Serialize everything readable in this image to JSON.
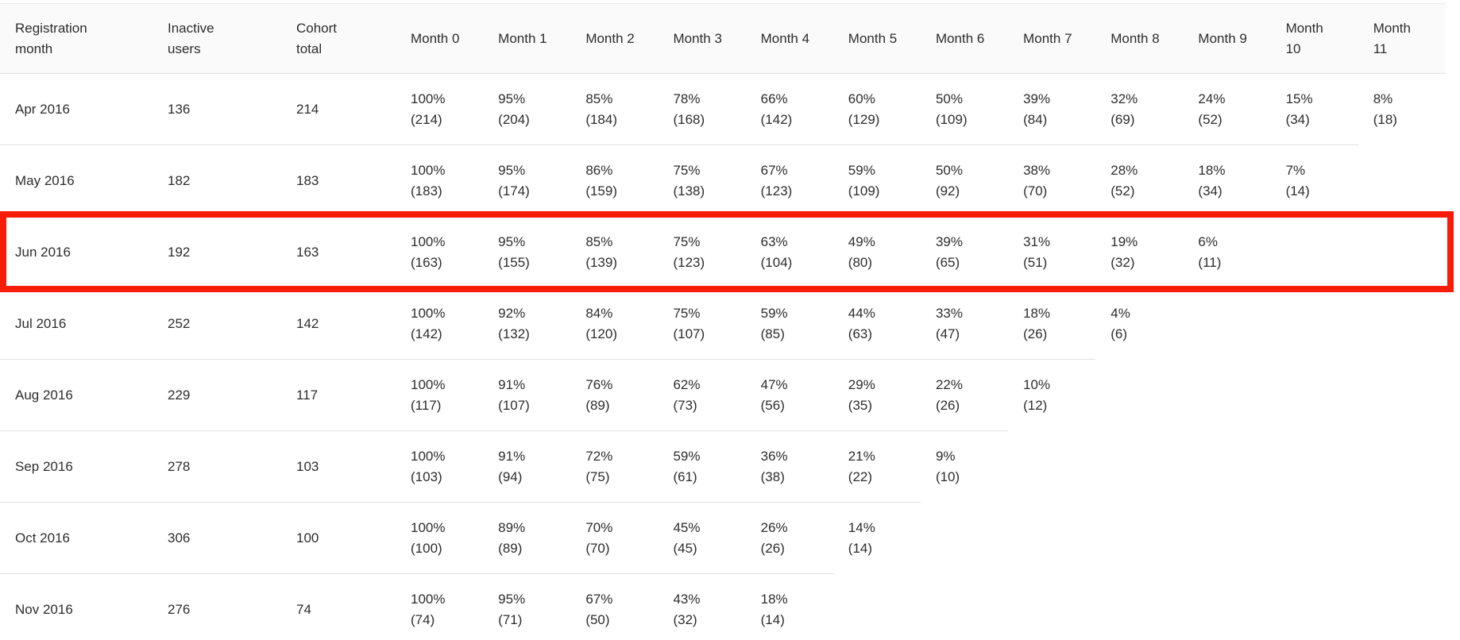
{
  "colors": {
    "highlight_border": "#f71c08",
    "header_bg": "#fafafa",
    "divider": "#e3e3e3",
    "text": "#2d2d2d"
  },
  "highlight": {
    "highlighted_row": "Jun 2016",
    "color": "#f71c08"
  },
  "table": {
    "headers": [
      "Registration month",
      "Inactive users",
      "Cohort total",
      "Month 0",
      "Month 1",
      "Month 2",
      "Month 3",
      "Month 4",
      "Month 5",
      "Month 6",
      "Month 7",
      "Month 8",
      "Month 9",
      "Month 10",
      "Month 11"
    ],
    "rows": [
      {
        "registration_month": "Apr 2016",
        "inactive_users": "136",
        "cohort_total": "214",
        "highlighted": false,
        "months": [
          {
            "pct": "100%",
            "count": "(214)"
          },
          {
            "pct": "95%",
            "count": "(204)"
          },
          {
            "pct": "85%",
            "count": "(184)"
          },
          {
            "pct": "78%",
            "count": "(168)"
          },
          {
            "pct": "66%",
            "count": "(142)"
          },
          {
            "pct": "60%",
            "count": "(129)"
          },
          {
            "pct": "50%",
            "count": "(109)"
          },
          {
            "pct": "39%",
            "count": "(84)"
          },
          {
            "pct": "32%",
            "count": "(69)"
          },
          {
            "pct": "24%",
            "count": "(52)"
          },
          {
            "pct": "15%",
            "count": "(34)"
          },
          {
            "pct": "8%",
            "count": "(18)"
          }
        ]
      },
      {
        "registration_month": "May 2016",
        "inactive_users": "182",
        "cohort_total": "183",
        "highlighted": false,
        "months": [
          {
            "pct": "100%",
            "count": "(183)"
          },
          {
            "pct": "95%",
            "count": "(174)"
          },
          {
            "pct": "86%",
            "count": "(159)"
          },
          {
            "pct": "75%",
            "count": "(138)"
          },
          {
            "pct": "67%",
            "count": "(123)"
          },
          {
            "pct": "59%",
            "count": "(109)"
          },
          {
            "pct": "50%",
            "count": "(92)"
          },
          {
            "pct": "38%",
            "count": "(70)"
          },
          {
            "pct": "28%",
            "count": "(52)"
          },
          {
            "pct": "18%",
            "count": "(34)"
          },
          {
            "pct": "7%",
            "count": "(14)"
          }
        ]
      },
      {
        "registration_month": "Jun 2016",
        "inactive_users": "192",
        "cohort_total": "163",
        "highlighted": true,
        "months": [
          {
            "pct": "100%",
            "count": "(163)"
          },
          {
            "pct": "95%",
            "count": "(155)"
          },
          {
            "pct": "85%",
            "count": "(139)"
          },
          {
            "pct": "75%",
            "count": "(123)"
          },
          {
            "pct": "63%",
            "count": "(104)"
          },
          {
            "pct": "49%",
            "count": "(80)"
          },
          {
            "pct": "39%",
            "count": "(65)"
          },
          {
            "pct": "31%",
            "count": "(51)"
          },
          {
            "pct": "19%",
            "count": "(32)"
          },
          {
            "pct": "6%",
            "count": "(11)"
          }
        ]
      },
      {
        "registration_month": "Jul 2016",
        "inactive_users": "252",
        "cohort_total": "142",
        "highlighted": false,
        "months": [
          {
            "pct": "100%",
            "count": "(142)"
          },
          {
            "pct": "92%",
            "count": "(132)"
          },
          {
            "pct": "84%",
            "count": "(120)"
          },
          {
            "pct": "75%",
            "count": "(107)"
          },
          {
            "pct": "59%",
            "count": "(85)"
          },
          {
            "pct": "44%",
            "count": "(63)"
          },
          {
            "pct": "33%",
            "count": "(47)"
          },
          {
            "pct": "18%",
            "count": "(26)"
          },
          {
            "pct": "4%",
            "count": "(6)"
          }
        ]
      },
      {
        "registration_month": "Aug 2016",
        "inactive_users": "229",
        "cohort_total": "117",
        "highlighted": false,
        "months": [
          {
            "pct": "100%",
            "count": "(117)"
          },
          {
            "pct": "91%",
            "count": "(107)"
          },
          {
            "pct": "76%",
            "count": "(89)"
          },
          {
            "pct": "62%",
            "count": "(73)"
          },
          {
            "pct": "47%",
            "count": "(56)"
          },
          {
            "pct": "29%",
            "count": "(35)"
          },
          {
            "pct": "22%",
            "count": "(26)"
          },
          {
            "pct": "10%",
            "count": "(12)"
          }
        ]
      },
      {
        "registration_month": "Sep 2016",
        "inactive_users": "278",
        "cohort_total": "103",
        "highlighted": false,
        "months": [
          {
            "pct": "100%",
            "count": "(103)"
          },
          {
            "pct": "91%",
            "count": "(94)"
          },
          {
            "pct": "72%",
            "count": "(75)"
          },
          {
            "pct": "59%",
            "count": "(61)"
          },
          {
            "pct": "36%",
            "count": "(38)"
          },
          {
            "pct": "21%",
            "count": "(22)"
          },
          {
            "pct": "9%",
            "count": "(10)"
          }
        ]
      },
      {
        "registration_month": "Oct 2016",
        "inactive_users": "306",
        "cohort_total": "100",
        "highlighted": false,
        "months": [
          {
            "pct": "100%",
            "count": "(100)"
          },
          {
            "pct": "89%",
            "count": "(89)"
          },
          {
            "pct": "70%",
            "count": "(70)"
          },
          {
            "pct": "45%",
            "count": "(45)"
          },
          {
            "pct": "26%",
            "count": "(26)"
          },
          {
            "pct": "14%",
            "count": "(14)"
          }
        ]
      },
      {
        "registration_month": "Nov 2016",
        "inactive_users": "276",
        "cohort_total": "74",
        "highlighted": false,
        "months": [
          {
            "pct": "100%",
            "count": "(74)"
          },
          {
            "pct": "95%",
            "count": "(71)"
          },
          {
            "pct": "67%",
            "count": "(50)"
          },
          {
            "pct": "43%",
            "count": "(32)"
          },
          {
            "pct": "18%",
            "count": "(14)"
          }
        ]
      }
    ]
  }
}
